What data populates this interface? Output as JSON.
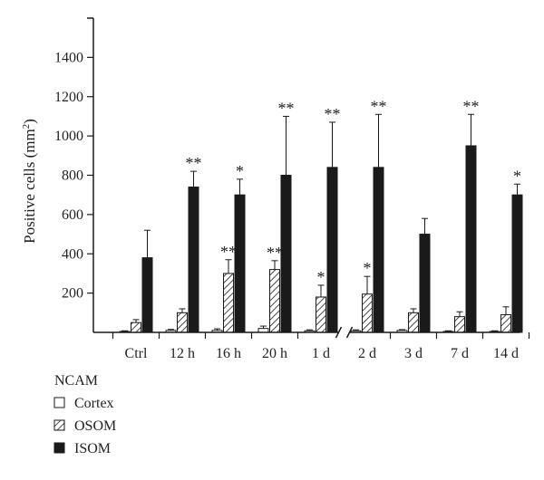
{
  "chart_data": {
    "type": "bar",
    "ylabel": "Positive cells (mm",
    "ylabel_sup": "2",
    "ylabel_close": ")",
    "ylim": [
      0,
      1600
    ],
    "yticks": [
      200,
      400,
      600,
      800,
      1000,
      1200,
      1400
    ],
    "categories": [
      "Ctrl",
      "12 h",
      "16 h",
      "20 h",
      "1 d",
      "2 d",
      "3 d",
      "7 d",
      "14 d"
    ],
    "axis_break_symbol": "//",
    "series": [
      {
        "name": "Cortex",
        "fill": "white",
        "values": [
          5,
          10,
          10,
          20,
          8,
          8,
          10,
          5,
          5
        ],
        "errors": [
          3,
          5,
          8,
          12,
          5,
          5,
          4,
          3,
          3
        ],
        "significance": [
          "",
          "",
          "",
          "",
          "",
          "",
          "",
          "",
          ""
        ]
      },
      {
        "name": "OSOM",
        "fill": "hatched",
        "values": [
          50,
          100,
          300,
          320,
          180,
          195,
          100,
          80,
          90
        ],
        "errors": [
          15,
          20,
          70,
          45,
          60,
          90,
          20,
          25,
          40
        ],
        "significance": [
          "",
          "",
          "**",
          "**",
          "*",
          "*",
          "",
          "",
          ""
        ]
      },
      {
        "name": "ISOM",
        "fill": "black",
        "values": [
          380,
          740,
          700,
          800,
          840,
          840,
          500,
          950,
          700
        ],
        "errors": [
          140,
          80,
          80,
          300,
          230,
          270,
          80,
          160,
          55
        ],
        "significance": [
          "",
          "**",
          "*",
          "**",
          "**",
          "**",
          "",
          "**",
          "*"
        ]
      }
    ],
    "legend": {
      "title": "NCAM",
      "position": "bottom-left"
    },
    "colors": {
      "bar_fill": "#1a1a1a",
      "stroke": "#1a1a1a",
      "background": "#ffffff"
    }
  }
}
